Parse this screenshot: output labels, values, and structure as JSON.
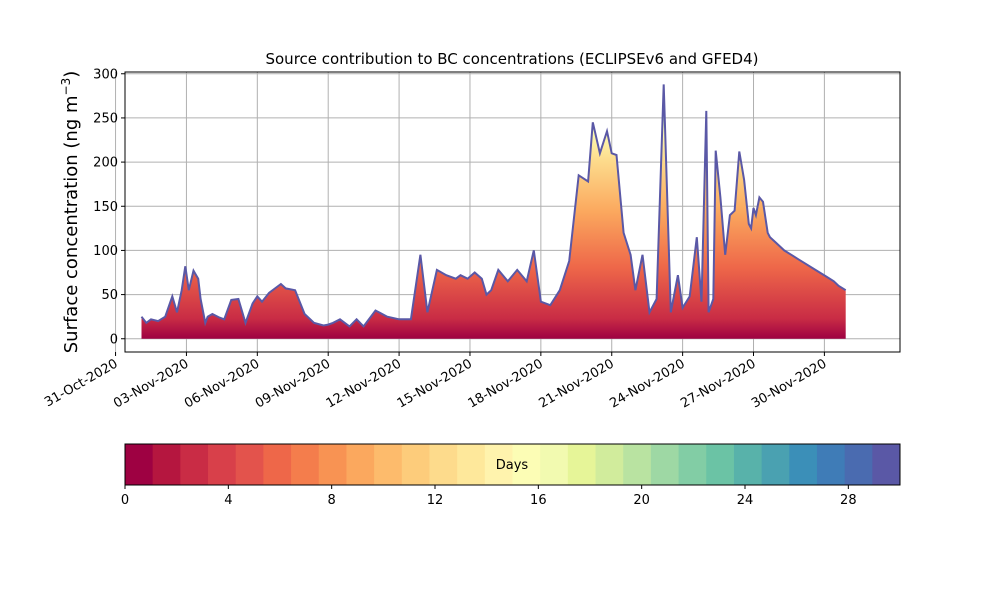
{
  "chart_data": {
    "type": "area",
    "title": "Source contribution to BC concentrations (ECLIPSEv6 and GFED4)",
    "ylabel_text": "Surface concentration (ng m",
    "ylabel_sup": "−3",
    "ylabel_close": ")",
    "ylim": [
      -15,
      302
    ],
    "yticks": [
      0,
      50,
      100,
      150,
      200,
      250,
      300
    ],
    "xlim": [
      0.4,
      33.2
    ],
    "xticks": [
      {
        "pos": 0,
        "label": "31-Oct-2020"
      },
      {
        "pos": 3,
        "label": "03-Nov-2020"
      },
      {
        "pos": 6,
        "label": "06-Nov-2020"
      },
      {
        "pos": 9,
        "label": "09-Nov-2020"
      },
      {
        "pos": 12,
        "label": "12-Nov-2020"
      },
      {
        "pos": 15,
        "label": "15-Nov-2020"
      },
      {
        "pos": 18,
        "label": "18-Nov-2020"
      },
      {
        "pos": 21,
        "label": "21-Nov-2020"
      },
      {
        "pos": 24,
        "label": "24-Nov-2020"
      },
      {
        "pos": 27,
        "label": "27-Nov-2020"
      },
      {
        "pos": 30,
        "label": "30-Nov-2020"
      }
    ],
    "grid": true,
    "total": {
      "x": [
        1.1,
        1.3,
        1.5,
        1.8,
        2.1,
        2.4,
        2.6,
        2.8,
        2.95,
        3.1,
        3.3,
        3.5,
        3.6,
        3.8,
        3.9,
        4.1,
        4.4,
        4.6,
        4.9,
        5.2,
        5.5,
        5.8,
        6.0,
        6.2,
        6.5,
        6.8,
        7.0,
        7.2,
        7.6,
        8.0,
        8.4,
        8.8,
        9.0,
        9.2,
        9.5,
        9.9,
        10.2,
        10.5,
        11.0,
        11.5,
        12.0,
        12.5,
        12.9,
        13.2,
        13.6,
        14.0,
        14.4,
        14.6,
        14.9,
        15.2,
        15.5,
        15.7,
        15.9,
        16.2,
        16.6,
        17.0,
        17.4,
        17.7,
        18.0,
        18.4,
        18.8,
        19.2,
        19.6,
        20.0,
        20.2,
        20.5,
        20.8,
        21.0,
        21.2,
        21.5,
        21.8,
        22.0,
        22.3,
        22.6,
        22.9,
        23.2,
        23.5,
        23.8,
        24.0,
        24.3,
        24.6,
        24.8,
        25.0,
        25.1,
        25.3,
        25.4,
        25.6,
        25.8,
        26.0,
        26.2,
        26.4,
        26.6,
        26.8,
        26.9,
        27.0,
        27.1,
        27.25,
        27.4,
        27.6,
        27.7,
        27.9,
        28.1,
        28.3,
        28.6,
        28.9,
        29.2,
        29.5,
        29.8,
        30.1,
        30.4,
        30.6,
        30.9
      ],
      "y": [
        25,
        18,
        22,
        20,
        25,
        48,
        30,
        55,
        82,
        55,
        77,
        68,
        45,
        18,
        25,
        28,
        24,
        22,
        44,
        45,
        18,
        40,
        48,
        42,
        52,
        58,
        62,
        57,
        55,
        28,
        18,
        15,
        16,
        18,
        22,
        14,
        22,
        14,
        32,
        25,
        22,
        22,
        95,
        30,
        78,
        72,
        68,
        72,
        68,
        75,
        68,
        50,
        55,
        78,
        65,
        78,
        65,
        100,
        42,
        38,
        55,
        88,
        185,
        178,
        245,
        210,
        235,
        210,
        208,
        120,
        95,
        55,
        95,
        30,
        45,
        288,
        30,
        72,
        35,
        48,
        115,
        42,
        258,
        30,
        45,
        213,
        160,
        95,
        140,
        145,
        212,
        180,
        130,
        125,
        148,
        140,
        160,
        155,
        120,
        115,
        110,
        105,
        100,
        95,
        90,
        85,
        80,
        75,
        70,
        65,
        60,
        55
      ],
      "_note_trim": "series truncated at x=30.9"
    },
    "colorbar": {
      "label": "Days",
      "range": [
        0,
        30
      ],
      "ticks": [
        0,
        4,
        8,
        12,
        16,
        20,
        24,
        28
      ],
      "colors": [
        "#9e0142",
        "#b5163f",
        "#c92c45",
        "#d8404a",
        "#e3534c",
        "#ee6749",
        "#f47d4c",
        "#f89353",
        "#fba85e",
        "#fdbb6c",
        "#fdcc7b",
        "#fddb8c",
        "#fee89b",
        "#fff3ad",
        "#fcfdb5",
        "#f2fab0",
        "#e6f598",
        "#d1ec9c",
        "#b9e3a1",
        "#9ed8a4",
        "#82cda5",
        "#6bc3a5",
        "#58b2aa",
        "#4aa1b1",
        "#3b8fb8",
        "#3f7cb7",
        "#4a6bb0",
        "#5a58a6"
      ]
    }
  }
}
